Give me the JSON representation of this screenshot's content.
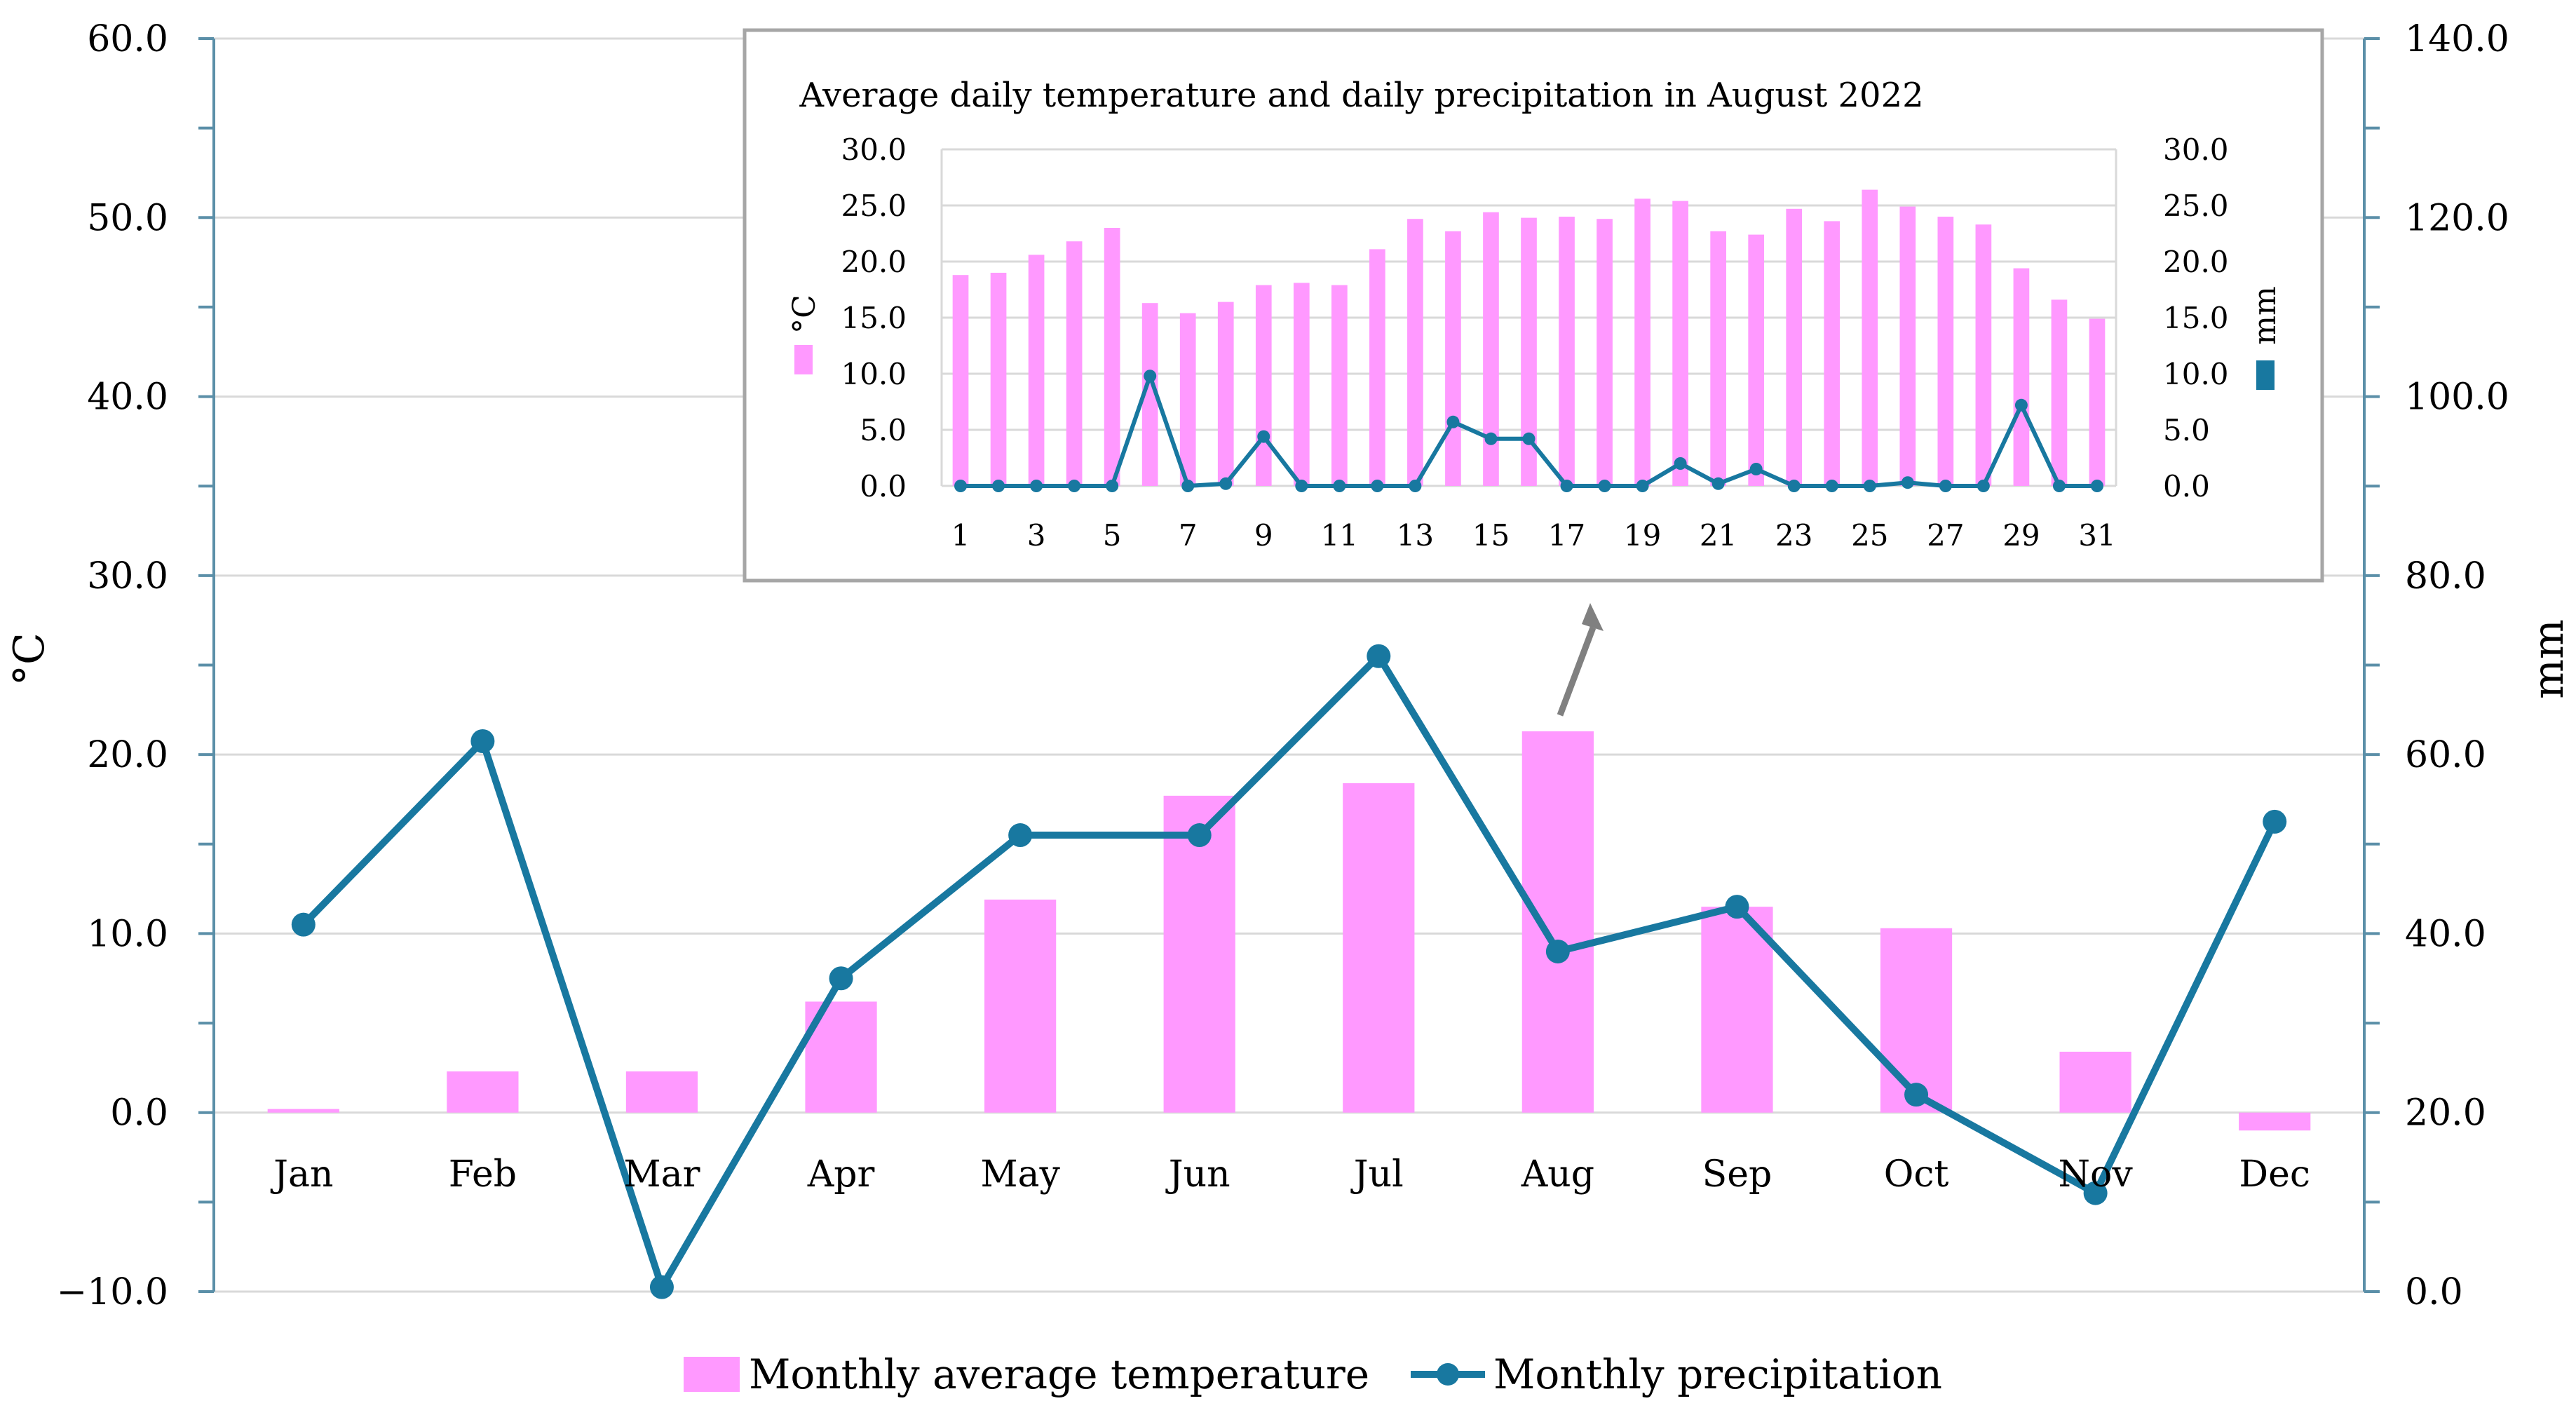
{
  "colors": {
    "temperature": "#ff99ff",
    "precipitation": "#1878a0",
    "grid": "#d9d9d9",
    "axis": "#5b8fa8"
  },
  "chart_data": [
    {
      "id": "main",
      "type": "bar+line",
      "title": "",
      "categories": [
        "Jan",
        "Feb",
        "Mar",
        "Apr",
        "May",
        "Jun",
        "Jul",
        "Aug",
        "Sep",
        "Oct",
        "Nov",
        "Dec"
      ],
      "series": [
        {
          "name": "Monthly average temperature",
          "type": "bar",
          "axis": "left",
          "values": [
            0.2,
            2.3,
            2.3,
            6.2,
            11.9,
            17.7,
            18.4,
            21.3,
            11.5,
            10.3,
            3.4,
            -1.0
          ]
        },
        {
          "name": "Monthly precipitation",
          "type": "line",
          "axis": "right",
          "values": [
            41.0,
            61.5,
            0.5,
            35.0,
            51.0,
            51.0,
            71.0,
            38.0,
            43.0,
            22.0,
            11.0,
            52.5
          ]
        }
      ],
      "ylabel_left": "°C",
      "ylabel_right": "mm",
      "ylim_left": [
        -10,
        60
      ],
      "ylim_right": [
        0,
        140
      ],
      "yticks_left": [
        "60.0",
        "50.0",
        "40.0",
        "30.0",
        "20.0",
        "10.0",
        "0.0",
        "−10.0"
      ],
      "yticks_right": [
        "140.0",
        "120.0",
        "100.0",
        "80.0",
        "60.0",
        "40.0",
        "20.0",
        "0.0"
      ],
      "legend": [
        "Monthly average temperature",
        "Monthly precipitation"
      ],
      "legend_position": "bottom-center",
      "grid": true
    },
    {
      "id": "inset",
      "type": "bar+line",
      "title": "Average daily temperature and daily precipitation in August 2022",
      "x": [
        1,
        2,
        3,
        4,
        5,
        6,
        7,
        8,
        9,
        10,
        11,
        12,
        13,
        14,
        15,
        16,
        17,
        18,
        19,
        20,
        21,
        22,
        23,
        24,
        25,
        26,
        27,
        28,
        29,
        30,
        31
      ],
      "xtick_labels": [
        "1",
        "3",
        "5",
        "7",
        "9",
        "11",
        "13",
        "15",
        "17",
        "19",
        "21",
        "23",
        "25",
        "27",
        "29",
        "31"
      ],
      "series": [
        {
          "name": "°C",
          "type": "bar",
          "axis": "left",
          "values": [
            18.8,
            19.0,
            20.6,
            21.8,
            23.0,
            16.3,
            15.4,
            16.4,
            17.9,
            18.1,
            17.9,
            21.1,
            23.8,
            22.7,
            24.4,
            23.9,
            24.0,
            23.8,
            25.6,
            25.4,
            22.7,
            22.4,
            24.7,
            23.6,
            26.4,
            24.9,
            24.0,
            23.3,
            19.4,
            16.6,
            14.9
          ]
        },
        {
          "name": "mm",
          "type": "line",
          "axis": "right",
          "values": [
            0,
            0,
            0,
            0,
            0,
            9.8,
            0,
            0.2,
            4.4,
            0,
            0,
            0,
            0,
            5.7,
            4.2,
            4.2,
            0,
            0,
            0,
            2.0,
            0.2,
            1.5,
            0,
            0,
            0,
            0.3,
            0,
            0,
            7.2,
            0,
            0
          ]
        }
      ],
      "ylabel_left": "°C",
      "ylabel_right": "mm",
      "ylim_left": [
        0,
        30
      ],
      "ylim_right": [
        0,
        30
      ],
      "yticks_left": [
        "30.0",
        "25.0",
        "20.0",
        "15.0",
        "10.0",
        "5.0",
        "0.0"
      ],
      "yticks_right": [
        "30.0",
        "25.0",
        "20.0",
        "15.0",
        "10.0",
        "5.0",
        "0.0"
      ],
      "grid": true
    }
  ]
}
